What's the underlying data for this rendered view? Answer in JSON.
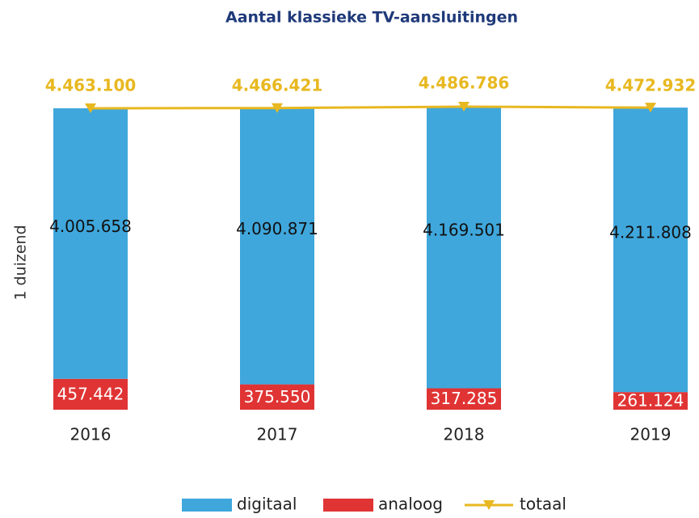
{
  "chart_data": {
    "type": "bar",
    "title": "Aantal klassieke TV-aansluitingen",
    "y_label": "1 duizend",
    "categories": [
      "2016",
      "2017",
      "2018",
      "2019"
    ],
    "series": [
      {
        "name": "digitaal",
        "type": "bar",
        "color": "#3fa7dc",
        "values": [
          4005658,
          4090871,
          4169501,
          4211808
        ],
        "value_labels": [
          "4.005.658",
          "4.090.871",
          "4.169.501",
          "4.211.808"
        ]
      },
      {
        "name": "analoog",
        "type": "bar",
        "color": "#e03434",
        "values": [
          457442,
          375550,
          317285,
          261124
        ],
        "value_labels": [
          "457.442",
          "375.550",
          "317.285",
          "261.124"
        ]
      },
      {
        "name": "totaal",
        "type": "line",
        "color": "#e8b820",
        "values": [
          4463100,
          4466421,
          4486786,
          4472932
        ],
        "value_labels": [
          "4.463.100",
          "4.466.421",
          "4.486.786",
          "4.472.932"
        ]
      }
    ],
    "legend": "bottom"
  }
}
